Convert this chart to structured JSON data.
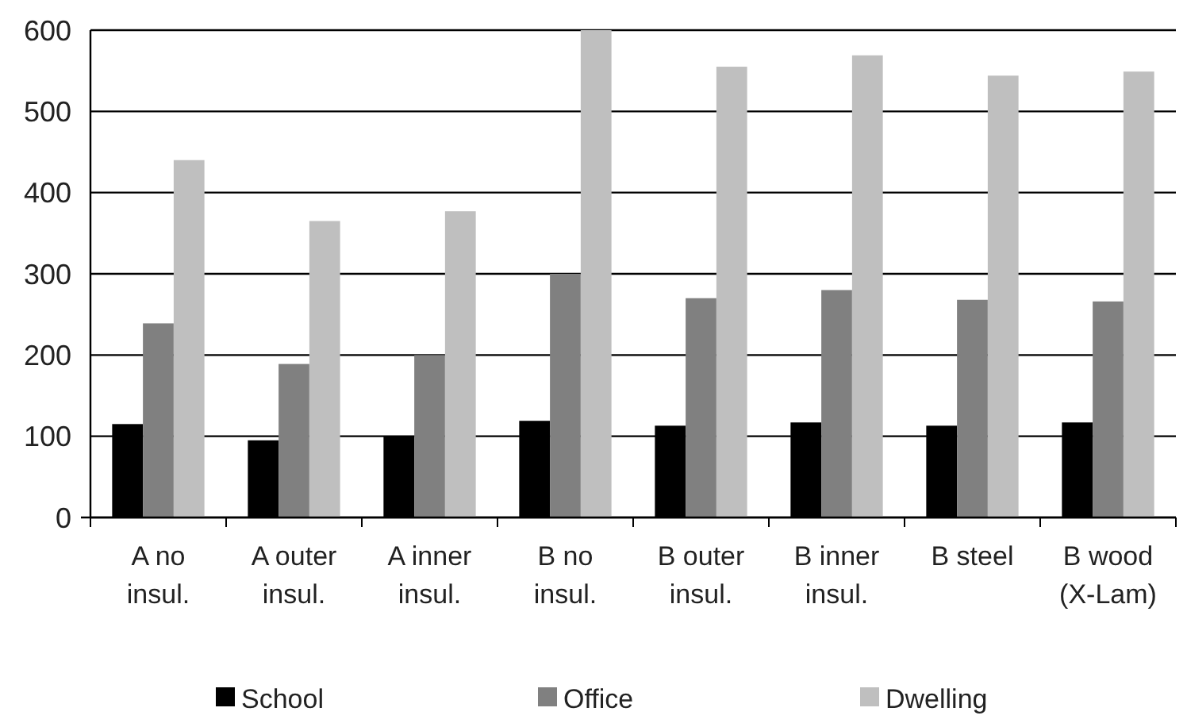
{
  "chart_data": {
    "type": "bar",
    "categories": [
      "A no insul.",
      "A outer insul.",
      "A inner insul.",
      "B no insul.",
      "B outer insul.",
      "B inner insul.",
      "B steel",
      "B wood (X-Lam)"
    ],
    "series": [
      {
        "name": "School",
        "color": "#000000",
        "values": [
          115,
          95,
          100,
          119,
          113,
          117,
          113,
          117
        ]
      },
      {
        "name": "Office",
        "color": "#808080",
        "values": [
          239,
          189,
          200,
          300,
          270,
          280,
          268,
          266
        ]
      },
      {
        "name": "Dwelling",
        "color": "#bfbfbf",
        "values": [
          440,
          365,
          377,
          600,
          555,
          569,
          544,
          549
        ]
      }
    ],
    "ylim": [
      0,
      600
    ],
    "yticks": [
      0,
      100,
      200,
      300,
      400,
      500,
      600
    ],
    "grid": "y",
    "legend": "bottom"
  }
}
